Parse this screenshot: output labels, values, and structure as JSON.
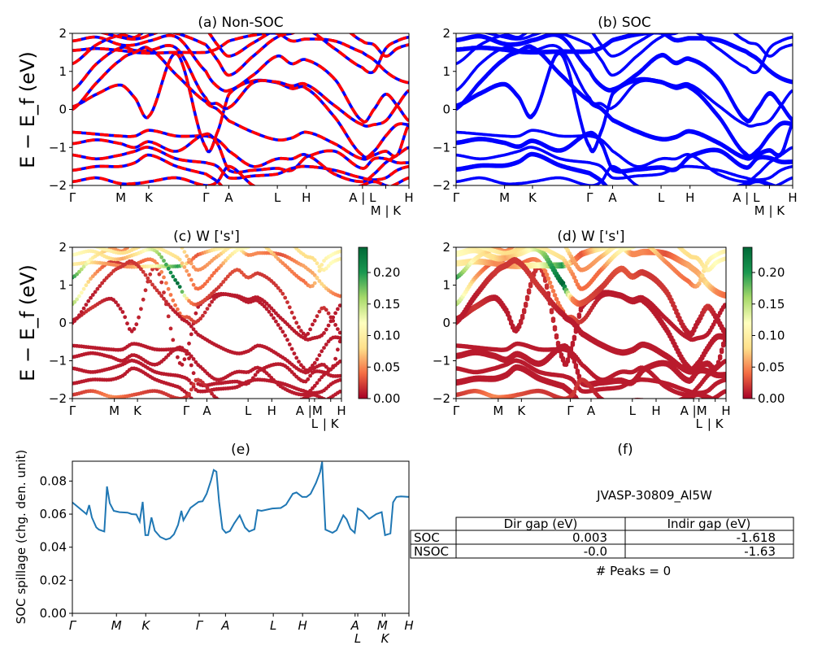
{
  "colors": {
    "nonsoc_line": "#ff0000",
    "nonsoc_dash": "#0000ff",
    "soc_line": "#0000ff",
    "spillage_line": "#1f77b4",
    "colormap": [
      "#a50026",
      "#f46d43",
      "#fee08b",
      "#ffffbf",
      "#a6d96a",
      "#1a9850",
      "#006837"
    ]
  },
  "band_nodes": [
    0,
    0.072,
    0.144,
    0.186,
    0.227,
    0.31,
    0.397,
    0.431,
    0.465,
    0.537,
    0.609,
    0.652,
    0.695,
    0.779,
    0.862,
    0.896,
    0.931,
    0.965,
    1
  ],
  "bands": [
    {
      "e": [
        0.07,
        0.4,
        0.64,
        0.3,
        -0.18,
        1.46,
        -1.0,
        -0.6,
        0.4,
        0.75,
        0.7,
        0.55,
        0.55,
        -0.2,
        -1.2,
        -1.1,
        -0.7,
        -0.4,
        -0.4
      ],
      "w": [
        0.01,
        0.02,
        0.01,
        0.01,
        0.01,
        0.02,
        0.01,
        0.01,
        0.01,
        0.01,
        0.01,
        0.01,
        0.01,
        0.01,
        0.01,
        0.01,
        0.01,
        0.01,
        0.01
      ]
    },
    {
      "e": [
        0.5,
        1.2,
        1.62,
        1.55,
        1.55,
        1.6,
        0.3,
        0.15,
        0.05,
        0.7,
        0.72,
        0.62,
        0.65,
        0.1,
        -0.4,
        -0.4,
        -0.3,
        0.1,
        0.5
      ],
      "w": [
        0.16,
        0.06,
        0.02,
        0.02,
        0.03,
        0.05,
        0.04,
        0.03,
        0.02,
        0.01,
        0.01,
        0.01,
        0.01,
        0.01,
        0.01,
        0.01,
        0.01,
        0.01,
        0.01
      ]
    },
    {
      "e": [
        1.55,
        1.6,
        1.55,
        1.5,
        1.48,
        1.5,
        1.5,
        1.6,
        1.8,
        1.95,
        2.0,
        1.8,
        1.85,
        1.8,
        1.5,
        1.3,
        1.0,
        0.8,
        0.7
      ],
      "w": [
        0.1,
        0.08,
        0.05,
        0.05,
        0.06,
        0.12,
        0.2,
        0.05,
        0.03,
        0.1,
        0.12,
        0.05,
        0.05,
        0.03,
        0.06,
        0.06,
        0.08,
        0.05,
        0.04
      ]
    },
    {
      "e": [
        -0.6,
        -0.65,
        -0.7,
        -0.7,
        -0.55,
        -0.7,
        -0.7,
        -0.8,
        -1.1,
        -1.5,
        -1.3,
        -1.3,
        -1.2,
        -1.7,
        -1.9,
        -1.7,
        -1.4,
        -1.2,
        -1.0
      ],
      "w": [
        0.01,
        0.01,
        0.01,
        0.01,
        0.01,
        0.01,
        0.01,
        0.01,
        0.01,
        0.01,
        0.01,
        0.01,
        0.01,
        0.01,
        0.01,
        0.01,
        0.01,
        0.01,
        0.01
      ]
    },
    {
      "e": [
        -0.9,
        -0.8,
        -0.9,
        -1.0,
        -0.85,
        -1.1,
        -0.65,
        -0.9,
        -1.6,
        -1.6,
        -1.55,
        -1.6,
        -1.25,
        -1.1,
        -1.55,
        -1.3,
        -1.3,
        -1.4,
        -1.4
      ],
      "w": [
        0.01,
        0.01,
        0.01,
        0.01,
        0.01,
        0.01,
        0.01,
        0.01,
        0.01,
        0.01,
        0.01,
        0.01,
        0.01,
        0.01,
        0.01,
        0.01,
        0.01,
        0.01,
        0.01
      ]
    },
    {
      "e": [
        -1.2,
        -1.3,
        -1.2,
        -1.1,
        -1.0,
        -1.3,
        -1.4,
        -1.5,
        -1.8,
        -1.75,
        -1.7,
        -1.55,
        -1.5,
        -1.6,
        -1.8,
        -1.85,
        -1.8,
        -1.6,
        -1.5
      ],
      "w": [
        0.01,
        0.01,
        0.01,
        0.01,
        0.01,
        0.01,
        0.01,
        0.01,
        0.01,
        0.01,
        0.01,
        0.01,
        0.01,
        0.01,
        0.01,
        0.01,
        0.01,
        0.01,
        0.01
      ]
    },
    {
      "e": [
        -1.6,
        -1.5,
        -1.5,
        -1.4,
        -1.2,
        -1.5,
        -1.7,
        -1.9,
        -2.2,
        -2.3,
        -2.2,
        -2.1,
        -2.1,
        -2.2,
        -2.0,
        -1.9,
        -2.0,
        -2.1,
        -2.2
      ],
      "w": [
        0.01,
        0.01,
        0.01,
        0.01,
        0.01,
        0.01,
        0.01,
        0.01,
        0.01,
        0.01,
        0.01,
        0.01,
        0.01,
        0.01,
        0.01,
        0.01,
        0.01,
        0.01,
        0.01
      ]
    },
    {
      "e": [
        -1.9,
        -1.8,
        -1.95,
        -1.95,
        -1.9,
        -1.8,
        -2.0,
        -1.9,
        -1.5,
        -2.0,
        -2.2,
        -2.2,
        -2.3,
        -2.5,
        -2.5,
        -2.3,
        -2.1,
        -1.95,
        -1.8
      ],
      "w": [
        0.02,
        0.03,
        0.05,
        0.04,
        0.03,
        0.02,
        0.02,
        0.02,
        0.02,
        0.01,
        0.01,
        0.01,
        0.01,
        0.01,
        0.01,
        0.01,
        0.01,
        0.01,
        0.01
      ]
    },
    {
      "e": [
        1.8,
        1.9,
        1.7,
        1.7,
        1.8,
        1.9,
        1.0,
        0.6,
        0.5,
        0.9,
        1.4,
        1.2,
        1.3,
        0.8,
        -0.3,
        0.0,
        0.4,
        0.1,
        -0.3
      ],
      "w": [
        0.12,
        0.1,
        0.08,
        0.06,
        0.08,
        0.15,
        0.24,
        0.05,
        0.03,
        0.02,
        0.03,
        0.03,
        0.02,
        0.02,
        0.01,
        0.01,
        0.02,
        0.01,
        0.01
      ]
    },
    {
      "e": [
        1.2,
        1.7,
        1.95,
        1.9,
        2.1,
        2.0,
        1.7,
        1.3,
        0.9,
        1.4,
        1.9,
        2.0,
        2.1,
        1.6,
        1.1,
        1.0,
        1.6,
        1.8,
        1.9
      ],
      "w": [
        0.2,
        0.1,
        0.06,
        0.05,
        0.05,
        0.1,
        0.08,
        0.05,
        0.04,
        0.04,
        0.11,
        0.12,
        0.1,
        0.05,
        0.04,
        0.06,
        0.1,
        0.12,
        0.1
      ]
    },
    {
      "e": [
        0.0,
        0.7,
        1.3,
        1.5,
        1.6,
        0.9,
        0.2,
        0.0,
        -0.3,
        -0.6,
        -0.8,
        -0.75,
        -0.6,
        -0.9,
        -1.3,
        -1.2,
        -1.1,
        -1.2,
        -0.4
      ],
      "w": [
        0.01,
        0.01,
        0.02,
        0.02,
        0.02,
        0.02,
        0.01,
        0.01,
        0.01,
        0.01,
        0.01,
        0.01,
        0.01,
        0.01,
        0.01,
        0.01,
        0.01,
        0.01,
        0.01
      ]
    },
    {
      "e": [
        2.1,
        2.05,
        1.9,
        1.85,
        1.95,
        2.2,
        2.1,
        1.7,
        1.4,
        1.75,
        2.1,
        2.2,
        2.3,
        2.3,
        1.8,
        1.7,
        1.4,
        1.6,
        1.7
      ],
      "w": [
        0.1,
        0.12,
        0.1,
        0.08,
        0.08,
        0.12,
        0.1,
        0.06,
        0.05,
        0.06,
        0.12,
        0.12,
        0.12,
        0.1,
        0.08,
        0.08,
        0.1,
        0.12,
        0.1
      ]
    }
  ],
  "chart_data": [
    {
      "id": "a",
      "type": "line",
      "title": "(a) Non-SOC",
      "ylabel": "E − E_f (eV)",
      "ylim": [
        -2,
        2
      ],
      "yticks": [
        "2",
        "1",
        "0",
        "−1",
        "−2"
      ],
      "ytick_values": [
        2,
        1,
        0,
        -1,
        -2
      ],
      "xticks": {
        "labels": [
          "Γ",
          "M",
          "K",
          "Γ",
          "A",
          "L",
          "H",
          "A | L",
          "M | K",
          "H"
        ],
        "positions": [
          0,
          0.144,
          0.227,
          0.397,
          0.465,
          0.609,
          0.695,
          0.862,
          0.931,
          1
        ]
      },
      "series_source": "bands"
    },
    {
      "id": "b",
      "type": "line",
      "title": "(b) SOC",
      "ylim": [
        -2,
        2
      ],
      "yticks": [
        "2",
        "1",
        "0",
        "−1",
        "−2"
      ],
      "ytick_values": [
        2,
        1,
        0,
        -1,
        -2
      ],
      "xticks": {
        "labels": [
          "Γ",
          "M",
          "K",
          "Γ",
          "A",
          "L",
          "H",
          "A | L",
          "M | K",
          "H"
        ],
        "positions": [
          0,
          0.144,
          0.227,
          0.397,
          0.465,
          0.609,
          0.695,
          0.862,
          0.931,
          1
        ]
      },
      "series_source": "bands"
    },
    {
      "id": "c",
      "type": "scatter",
      "title": "(c)  W ['s']",
      "ylabel": "E − E_f (eV)",
      "ylim": [
        -2,
        2
      ],
      "yticks": [
        "2",
        "1",
        "0",
        "−1",
        "−2"
      ],
      "ytick_values": [
        2,
        1,
        0,
        -1,
        -2
      ],
      "xticks": {
        "labels": [
          "Γ",
          "M",
          "K",
          "Γ",
          "A",
          "L",
          "H",
          "A |M",
          "L",
          "| K",
          "H"
        ],
        "positions": [
          0,
          0.156,
          0.242,
          0.423,
          0.5,
          0.653,
          0.741,
          0.88,
          0.9,
          0.96,
          1
        ]
      },
      "colorbar": {
        "range": [
          0,
          0.24
        ],
        "ticks": [
          "0.00",
          "0.05",
          "0.10",
          "0.15",
          "0.20"
        ],
        "tick_values": [
          0,
          0.05,
          0.1,
          0.15,
          0.2
        ]
      },
      "series_source": "bands"
    },
    {
      "id": "d",
      "type": "scatter",
      "title": "(d) W ['s']",
      "ylim": [
        -2,
        2
      ],
      "yticks": [
        "2",
        "1",
        "0",
        "−1",
        "−2"
      ],
      "ytick_values": [
        2,
        1,
        0,
        -1,
        -2
      ],
      "xticks": {
        "labels": [
          "Γ",
          "M",
          "K",
          "Γ",
          "A",
          "L",
          "H",
          "A |M",
          "L",
          "| K",
          "H"
        ],
        "positions": [
          0,
          0.156,
          0.242,
          0.423,
          0.5,
          0.653,
          0.741,
          0.88,
          0.9,
          0.96,
          1
        ]
      },
      "colorbar": {
        "range": [
          0,
          0.24
        ],
        "ticks": [
          "0.00",
          "0.05",
          "0.10",
          "0.15",
          "0.20"
        ],
        "tick_values": [
          0,
          0.05,
          0.1,
          0.15,
          0.2
        ]
      },
      "series_source": "bands"
    },
    {
      "id": "e",
      "type": "line",
      "title": "(e)",
      "ylabel": "SOC spillage (chg. den. unit)",
      "ylim": [
        0,
        0.092
      ],
      "yticks": [
        "0.00",
        "0.02",
        "0.04",
        "0.06",
        "0.08"
      ],
      "ytick_values": [
        0,
        0.02,
        0.04,
        0.06,
        0.08
      ],
      "xticks": {
        "labels": [
          "Γ",
          "M",
          "K",
          "Γ",
          "A",
          "L",
          "H",
          "A",
          "L",
          "M",
          "K",
          "H"
        ],
        "positions": [
          0,
          0.131,
          0.218,
          0.377,
          0.455,
          0.597,
          0.684,
          0.84,
          0.848,
          0.921,
          0.929,
          1.0
        ]
      },
      "x": [
        0,
        0.042,
        0.05,
        0.058,
        0.071,
        0.079,
        0.095,
        0.103,
        0.111,
        0.123,
        0.14,
        0.164,
        0.176,
        0.19,
        0.2,
        0.209,
        0.217,
        0.225,
        0.235,
        0.245,
        0.261,
        0.278,
        0.29,
        0.302,
        0.314,
        0.324,
        0.33,
        0.351,
        0.375,
        0.387,
        0.399,
        0.412,
        0.42,
        0.428,
        0.436,
        0.446,
        0.456,
        0.468,
        0.481,
        0.497,
        0.513,
        0.525,
        0.541,
        0.55,
        0.562,
        0.594,
        0.619,
        0.635,
        0.655,
        0.666,
        0.683,
        0.696,
        0.708,
        0.724,
        0.736,
        0.742,
        0.752,
        0.773,
        0.785,
        0.805,
        0.815,
        0.826,
        0.839,
        0.848,
        0.862,
        0.882,
        0.903,
        0.919,
        0.929,
        0.945,
        0.953,
        0.963,
        0.976,
        1.0
      ],
      "y": [
        0.0671,
        0.06,
        0.0655,
        0.058,
        0.052,
        0.0506,
        0.0495,
        0.0767,
        0.0666,
        0.062,
        0.0612,
        0.0609,
        0.06,
        0.0598,
        0.0555,
        0.0674,
        0.0473,
        0.0473,
        0.058,
        0.05,
        0.0462,
        0.0446,
        0.0454,
        0.0478,
        0.0535,
        0.062,
        0.0563,
        0.0638,
        0.0674,
        0.0678,
        0.0723,
        0.0805,
        0.0867,
        0.0857,
        0.0674,
        0.0511,
        0.0487,
        0.0498,
        0.0544,
        0.0593,
        0.0519,
        0.0495,
        0.0508,
        0.0625,
        0.062,
        0.0634,
        0.0637,
        0.0658,
        0.0723,
        0.0731,
        0.0704,
        0.0704,
        0.0723,
        0.0789,
        0.0854,
        0.0916,
        0.0506,
        0.0487,
        0.0503,
        0.0593,
        0.0568,
        0.0511,
        0.0487,
        0.0634,
        0.0617,
        0.0571,
        0.06,
        0.0612,
        0.0473,
        0.0483,
        0.0671,
        0.0704,
        0.0707,
        0.0704
      ]
    },
    {
      "id": "f",
      "type": "table",
      "title": "(f)",
      "subtitle": "JVASP-30809_Al5W",
      "columns": [
        "",
        "Dir gap (eV)",
        "Indir gap (eV)"
      ],
      "rows": [
        [
          "SOC",
          "0.003",
          "-1.618"
        ],
        [
          "NSOC",
          "-0.0",
          "-1.63"
        ]
      ],
      "footer": "# Peaks = 0"
    }
  ]
}
